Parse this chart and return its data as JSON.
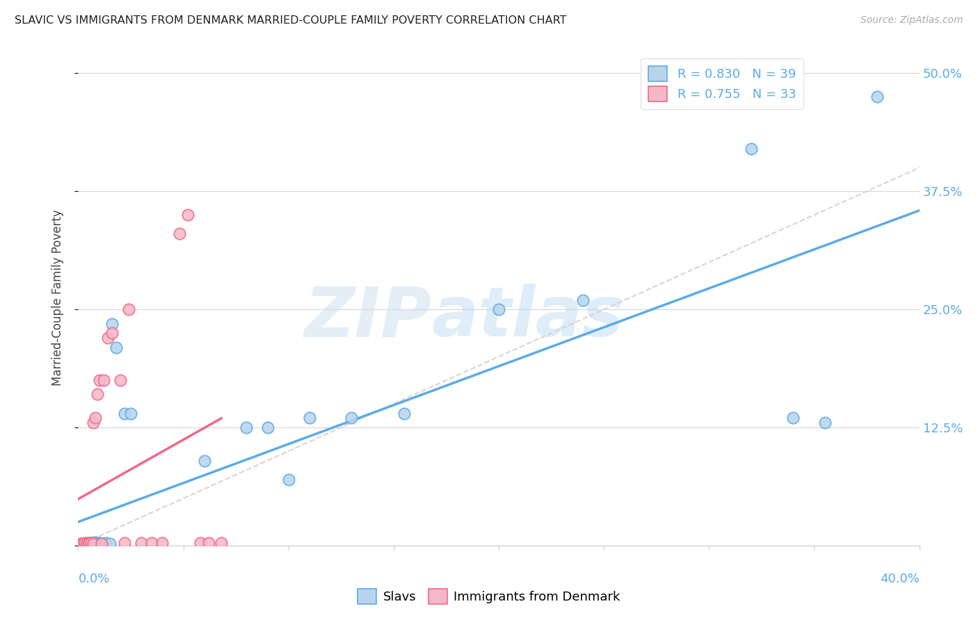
{
  "title": "SLAVIC VS IMMIGRANTS FROM DENMARK MARRIED-COUPLE FAMILY POVERTY CORRELATION CHART",
  "source": "Source: ZipAtlas.com",
  "ylabel": "Married-Couple Family Poverty",
  "yticks": [
    0.0,
    0.125,
    0.25,
    0.375,
    0.5
  ],
  "ytick_labels": [
    "",
    "12.5%",
    "25.0%",
    "37.5%",
    "50.0%"
  ],
  "xlim": [
    0.0,
    0.4
  ],
  "ylim": [
    0.0,
    0.525
  ],
  "watermark_zip": "ZIP",
  "watermark_atlas": "atlas",
  "legend_line1": "R = 0.830   N = 39",
  "legend_line2": "R = 0.755   N = 33",
  "color_slavs_face": "#b8d4ed",
  "color_slavs_edge": "#5aabe8",
  "color_denmark_face": "#f5b8c8",
  "color_denmark_edge": "#f06888",
  "color_line_slavs": "#5aabe8",
  "color_line_denmark": "#f06888",
  "color_refline": "#ddcccc",
  "slavs_x": [
    0.0005,
    0.001,
    0.0015,
    0.002,
    0.0025,
    0.003,
    0.003,
    0.004,
    0.004,
    0.004,
    0.005,
    0.005,
    0.006,
    0.006,
    0.007,
    0.007,
    0.008,
    0.009,
    0.01,
    0.011,
    0.013,
    0.015,
    0.016,
    0.018,
    0.022,
    0.025,
    0.06,
    0.08,
    0.09,
    0.1,
    0.11,
    0.13,
    0.155,
    0.2,
    0.24,
    0.32,
    0.34,
    0.355,
    0.38
  ],
  "slavs_y": [
    0.001,
    0.001,
    0.001,
    0.002,
    0.002,
    0.001,
    0.002,
    0.001,
    0.002,
    0.003,
    0.001,
    0.002,
    0.002,
    0.003,
    0.002,
    0.003,
    0.004,
    0.002,
    0.003,
    0.002,
    0.003,
    0.002,
    0.235,
    0.21,
    0.14,
    0.14,
    0.09,
    0.125,
    0.125,
    0.07,
    0.135,
    0.135,
    0.14,
    0.25,
    0.26,
    0.42,
    0.135,
    0.13,
    0.475
  ],
  "denmark_x": [
    0.0002,
    0.001,
    0.001,
    0.002,
    0.002,
    0.003,
    0.003,
    0.004,
    0.004,
    0.005,
    0.005,
    0.006,
    0.006,
    0.007,
    0.007,
    0.008,
    0.009,
    0.01,
    0.011,
    0.012,
    0.014,
    0.016,
    0.02,
    0.022,
    0.024,
    0.03,
    0.035,
    0.04,
    0.048,
    0.052,
    0.058,
    0.062,
    0.068
  ],
  "denmark_y": [
    0.001,
    0.001,
    0.002,
    0.001,
    0.002,
    0.002,
    0.003,
    0.001,
    0.002,
    0.002,
    0.003,
    0.002,
    0.003,
    0.002,
    0.13,
    0.135,
    0.16,
    0.175,
    0.002,
    0.175,
    0.22,
    0.225,
    0.175,
    0.003,
    0.25,
    0.003,
    0.003,
    0.003,
    0.33,
    0.35,
    0.003,
    0.003,
    0.003
  ]
}
